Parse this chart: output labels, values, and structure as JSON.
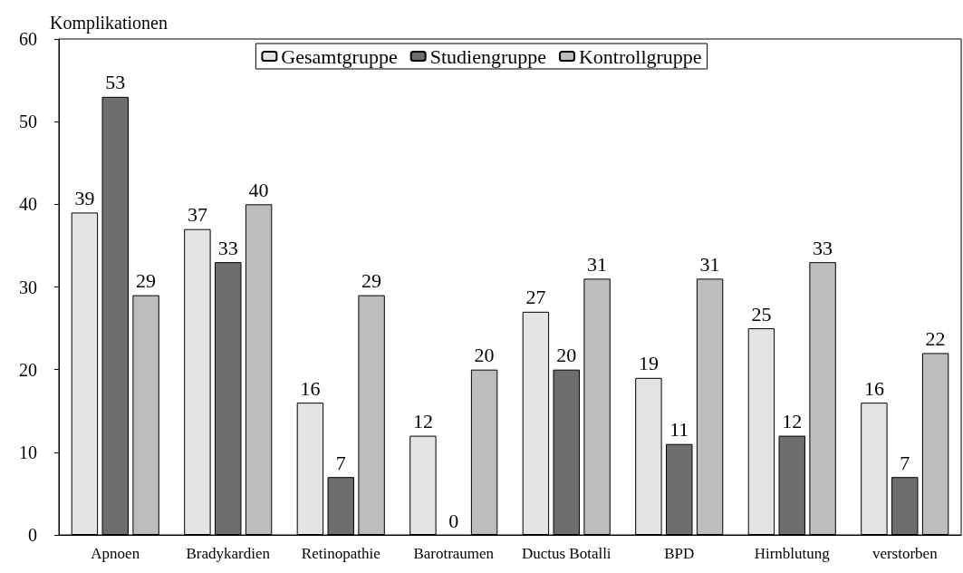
{
  "chart_data": {
    "type": "bar",
    "ylabel": "Komplikationen",
    "categories": [
      "Apnoen",
      "Bradykardien",
      "Retinopathie",
      "Barotraumen",
      "Ductus Botalli",
      "BPD",
      "Hirnblutung",
      "verstorben"
    ],
    "series": [
      {
        "name": "Gesamtgruppe",
        "color": "#e4e4e4",
        "values": [
          39,
          37,
          16,
          12,
          27,
          19,
          25,
          16
        ]
      },
      {
        "name": "Studiengruppe",
        "color": "#6e6e6e",
        "values": [
          53,
          33,
          7,
          0,
          20,
          11,
          12,
          7
        ]
      },
      {
        "name": "Kontrollgruppe",
        "color": "#bdbdbd",
        "values": [
          29,
          40,
          29,
          20,
          31,
          31,
          33,
          22
        ]
      }
    ],
    "ylim": [
      0,
      60
    ],
    "yticks": [
      0,
      10,
      20,
      30,
      40,
      50,
      60
    ],
    "grid": false,
    "legend": "top",
    "data_labels": true
  }
}
